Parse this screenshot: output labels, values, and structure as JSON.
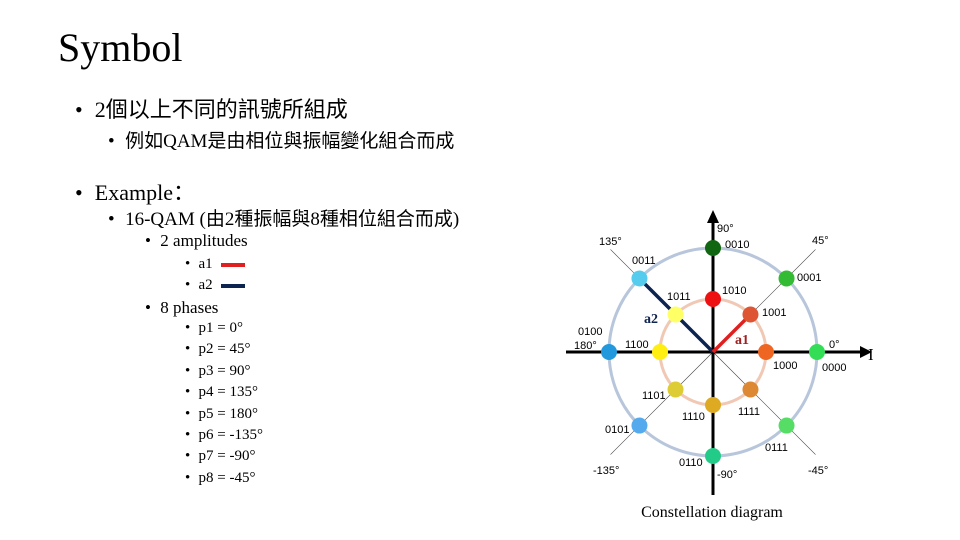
{
  "title": "Symbol",
  "bullets": {
    "l1": "2個以上不同的訊號所組成",
    "l1_sub": "例如QAM是由相位與振幅變化組合而成",
    "l2": "Example：",
    "l2_sub": "16-QAM (由2種振幅與8種相位組合而成)",
    "amplitudes_label": "2 amplitudes",
    "amplitudes": [
      {
        "label": "a1",
        "color": "#e02020"
      },
      {
        "label": "a2",
        "color": "#0d2350"
      }
    ],
    "phases_label": "8 phases",
    "phases": [
      "p1 = 0°",
      "p2 = 45°",
      "p3 = 90°",
      "p4 = 135°",
      "p5 = 180°",
      "p6 = -135°",
      "p7 = -90°",
      "p8 = -45°"
    ]
  },
  "diagram": {
    "axis_label_i": "I",
    "caption": "Constellation diagram",
    "angles": {
      "a0": "0°",
      "a45": "45°",
      "a90": "90°",
      "a135": "135°",
      "a180": "180°",
      "am135": "-135°",
      "am90": "-90°",
      "am45": "-45°"
    },
    "vector_a1": "a1",
    "vector_a2": "a2",
    "ring_colors": {
      "outer": "#b8c6dc",
      "inner": "#f0c8b4"
    },
    "points": [
      {
        "code": "0000",
        "ring": "outer",
        "angle": 0,
        "color": "#33dd55"
      },
      {
        "code": "0001",
        "ring": "outer",
        "angle": 45,
        "color": "#33bb33"
      },
      {
        "code": "0010",
        "ring": "outer",
        "angle": 90,
        "color": "#116611"
      },
      {
        "code": "0011",
        "ring": "outer",
        "angle": 135,
        "color": "#55ccee"
      },
      {
        "code": "0100",
        "ring": "outer",
        "angle": 180,
        "color": "#2299dd"
      },
      {
        "code": "0101",
        "ring": "outer",
        "angle": -135,
        "color": "#55aaee"
      },
      {
        "code": "0110",
        "ring": "outer",
        "angle": -90,
        "color": "#22cc88"
      },
      {
        "code": "0111",
        "ring": "outer",
        "angle": -45,
        "color": "#55dd66"
      },
      {
        "code": "1000",
        "ring": "inner",
        "angle": 0,
        "color": "#ee6622"
      },
      {
        "code": "1001",
        "ring": "inner",
        "angle": 45,
        "color": "#dd5533"
      },
      {
        "code": "1010",
        "ring": "inner",
        "angle": 90,
        "color": "#ee1111"
      },
      {
        "code": "1011",
        "ring": "inner",
        "angle": 135,
        "color": "#ffff66"
      },
      {
        "code": "1100",
        "ring": "inner",
        "angle": 180,
        "color": "#ffee11"
      },
      {
        "code": "1101",
        "ring": "inner",
        "angle": -135,
        "color": "#ddcc33"
      },
      {
        "code": "1110",
        "ring": "inner",
        "angle": -90,
        "color": "#ddaa22"
      },
      {
        "code": "1111",
        "ring": "inner",
        "angle": -45,
        "color": "#dd8833"
      }
    ]
  }
}
